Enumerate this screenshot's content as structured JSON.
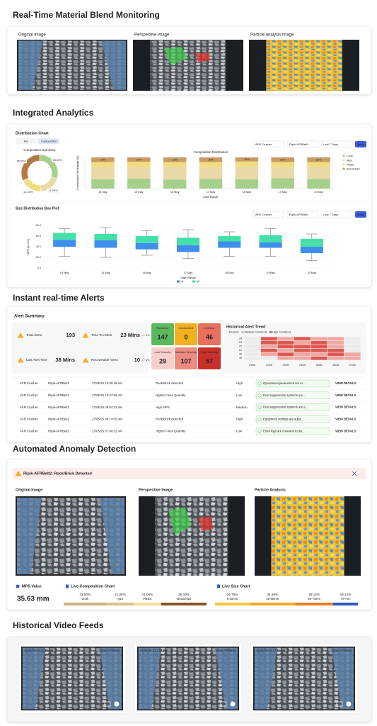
{
  "monitoring": {
    "title": "Real-Time Material Blend Monitoring",
    "images": [
      "Original image",
      "Perspective image",
      "Particle analysis image"
    ]
  },
  "analytics": {
    "title": "Integrated Analytics",
    "distribution": {
      "title": "Distribution Chart",
      "tabs": [
        "Bar",
        "Composition"
      ],
      "filters": [
        "AFR Crusher",
        "Ripik-AFRBelt1",
        "Last 7 Days"
      ],
      "apply": "Apply",
      "donut": {
        "type": "pie",
        "title": "Composition Summary",
        "categories": [
          "Cloth",
          "Agro",
          "Plastic",
          "Woodchips"
        ],
        "values": [
          33,
          21,
          21,
          35
        ],
        "value_labels": [
          "33.00%",
          "21.00%",
          "21.00%",
          "35.00%"
        ],
        "colors": [
          "#a7cf8c",
          "#e8d9a6",
          "#f2dd7d",
          "#b07a45"
        ]
      },
      "bars": {
        "type": "bar",
        "title": "Composition Distribution",
        "y_label": "Composition Percentage (%)",
        "x_label": "Date Range",
        "categories": [
          "14 May",
          "15 May",
          "16 May",
          "17 May",
          "18 May",
          "19 May",
          "20 May"
        ],
        "ylim": [
          0,
          100
        ],
        "series": [
          {
            "name": "Cloth",
            "color": "#a7cf8c",
            "values": [
              30,
              32,
              29,
              31,
              30,
              33,
              31
            ]
          },
          {
            "name": "Agro",
            "color": "#e8d9a6",
            "values": [
              40,
              38,
              42,
              39,
              41,
              37,
              40
            ]
          },
          {
            "name": "Plastic",
            "color": "#f2dd7d",
            "values": [
              15,
              16,
              14,
              15,
              16,
              15,
              14
            ]
          },
          {
            "name": "Woodchips",
            "color": "#c89a64",
            "values": [
              15,
              14,
              15,
              15,
              13,
              15,
              15
            ],
            "value_labels": [
              "15%",
              "14%",
              "15%",
              "15%",
              "13%",
              "15%",
              "15%"
            ]
          }
        ]
      }
    },
    "box": {
      "type": "box",
      "title": "Size Distribution Box Plot",
      "filters": [
        "AFR Crusher",
        "Ripik-AFRBelt1",
        "Last 7 Days"
      ],
      "apply": "Apply",
      "y_label": "MPS (in mm)",
      "x_label": "Date Range",
      "categories": [
        "14 May",
        "15 May",
        "16 May",
        "17 May",
        "18 May",
        "19 May",
        "20 May"
      ],
      "ylim": [
        0,
        80
      ],
      "yticks": [
        {
          "value": 0,
          "label": "0.0"
        },
        {
          "value": 20,
          "label": "20.0"
        },
        {
          "value": 40,
          "label": "40.0"
        },
        {
          "value": 60,
          "label": "60.0"
        },
        {
          "value": 80,
          "label": "80.0"
        }
      ],
      "min": [
        22,
        20,
        24,
        18,
        22,
        22,
        14
      ],
      "q1": [
        40,
        38,
        35,
        30,
        38,
        38,
        28
      ],
      "median": [
        53,
        52,
        47,
        43,
        50,
        48,
        40
      ],
      "q3": [
        66,
        64,
        60,
        57,
        60,
        62,
        55
      ],
      "max": [
        74,
        76,
        70,
        72,
        68,
        74,
        64
      ],
      "legend": [
        {
          "name": "q1",
          "color": "#3f8ef0"
        },
        {
          "name": "q3",
          "color": "#45e0a8"
        }
      ]
    }
  },
  "alerts": {
    "title": "Instant real-time Alerts",
    "summary_title": "Alert Summary",
    "kpis": [
      {
        "label": "Total Alerts",
        "value": 193
      },
      {
        "label": "Time To Action",
        "value": "23 Mins",
        "trend": "1%"
      },
      {
        "label": "Last Alert Time",
        "value": "38 Mins"
      },
      {
        "label": "Recoverable Alerts",
        "value": 10,
        "trend": "4%"
      }
    ],
    "status": [
      {
        "label": "Resolved",
        "value": 147,
        "color": "#5cb85c"
      },
      {
        "label": "Unresolved",
        "value": 0,
        "color": "#f2b01e"
      },
      {
        "label": "Overdue",
        "value": 46,
        "color": "#e8705f"
      },
      {
        "label": "Low Severity",
        "value": 29,
        "color": "#f7cfca"
      },
      {
        "label": "Medium Severity",
        "value": 107,
        "color": "#ec8b80"
      },
      {
        "label": "High Severity",
        "value": 57,
        "color": "#c9302c"
      }
    ],
    "trend": {
      "title": "Historical Alert Trend",
      "legend": [
        {
          "name": "No Alert",
          "color": "#ececec"
        },
        {
          "name": "Medium Count(<4)",
          "color": "#f3a8a3"
        },
        {
          "name": "High Count(>4)",
          "color": "#dc5a52"
        }
      ],
      "rows": [
        24,
        23,
        22,
        21,
        20,
        19
      ],
      "columns": [
        "21/05",
        "22/05",
        "23/05",
        "24/05",
        "25/05",
        "26/05",
        "27/05"
      ],
      "cells": [
        [
          0,
          2,
          1,
          2,
          1,
          1,
          0
        ],
        [
          0,
          2,
          2,
          1,
          2,
          1,
          0
        ],
        [
          0,
          1,
          2,
          2,
          2,
          1,
          0
        ],
        [
          0,
          2,
          1,
          2,
          2,
          2,
          0
        ],
        [
          0,
          1,
          2,
          1,
          1,
          2,
          1
        ],
        [
          0,
          0,
          1,
          1,
          2,
          1,
          1
        ]
      ]
    },
    "table": {
      "action": "VIEW DETAILS",
      "rows": [
        {
          "plant": "AFR Crusher",
          "belt": "Ripik-AFRBelt2",
          "time": "27/05/25 10:36:49 AM",
          "alert": "Rock/Brick detected",
          "severity": "High",
          "severity_color": "#d9362b",
          "action_taken": "Operational parameters are m..."
        },
        {
          "plant": "AFR Crusher",
          "belt": "Ripik-AFRBelt1",
          "time": "27/05/25 10:07:56 AM",
          "alert": "Higher Fines Quantity",
          "severity": "Low",
          "severity_color": "#888888",
          "action_taken": "Dust suppression systems are ..."
        },
        {
          "plant": "AFR Crusher",
          "belt": "Ripik-AFRBelt1",
          "time": "27/05/25 09:04:22 AM",
          "alert": "High MPS",
          "severity": "Medium",
          "severity_color": "#e8921e",
          "action_taken": "Dust suppression systems are a..."
        },
        {
          "plant": "AFR Crusher",
          "belt": "Ripik-AFRBelt2",
          "time": "27/05/25 08:14:05 AM",
          "alert": "Rock/Brick detected",
          "severity": "High",
          "severity_color": "#d9362b",
          "action_taken": "Equipment settings are adjus..."
        },
        {
          "plant": "AFR Crusher",
          "belt": "Ripik-AFRBelt1",
          "time": "27/05/25 07:48:32 AM",
          "alert": "Higher Fines Quantity",
          "severity": "Low",
          "severity_color": "#888888",
          "action_taken": "Enter logs are reviewed to dis..."
        }
      ]
    }
  },
  "anomaly": {
    "title": "Automated Anomaly Detection",
    "banner": "Ripik-AFRBelt2: Rock/Brick Detected",
    "images": [
      "Original Image",
      "Perspective Image",
      "Particle Analysis"
    ],
    "mps": {
      "label": "MPS Value",
      "value": "35.63 mm"
    },
    "composition": {
      "title": "Live Composition Chart",
      "categories": [
        "Cloth",
        "Agro",
        "Plastic",
        "Woodchips"
      ],
      "values": [
        33,
        21,
        21,
        35
      ],
      "value_labels": [
        "33.00%",
        "21.00%",
        "21.00%",
        "35.00%"
      ],
      "colors": [
        "#cfb185",
        "#d8c08e",
        "#eede96",
        "#8a5526"
      ]
    },
    "size": {
      "title": "Live Size Chart",
      "categories": [
        "0-20mm",
        "20-50mm",
        "50-70mm",
        "70+mm"
      ],
      "values": [
        26.75,
        34.98,
        29.14,
        19.13
      ],
      "value_labels": [
        "26.75%",
        "34.98%",
        "29.14%",
        "19.13%"
      ],
      "colors": [
        "#f6c63c",
        "#f5a623",
        "#ef7d22",
        "#2c58c4"
      ]
    }
  },
  "history": {
    "title": "Historical Video Feeds",
    "feeds": [
      {
        "time": "21/05/25 03:31:30 PM",
        "belt": "Ripik-AFRBelt1"
      },
      {
        "time": "21/05/25 3:21:52 PM",
        "belt": "Ripik-AFRBelt1"
      },
      {
        "time": "21/05/25 03:27:10 PM",
        "belt": "Ripik-AFRBelt1"
      }
    ]
  }
}
